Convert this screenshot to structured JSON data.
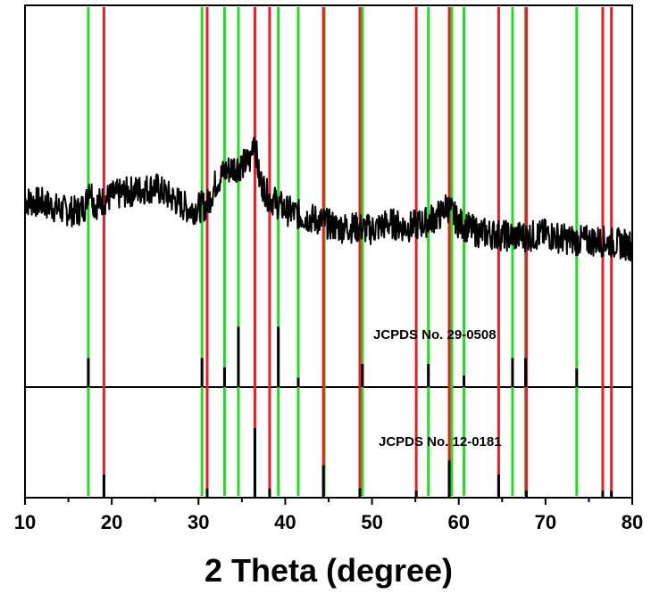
{
  "chart_data": {
    "type": "line",
    "xlabel": "2 Theta (degree)",
    "ylabel": "",
    "xlim": [
      10,
      80
    ],
    "x_ticks": [
      10,
      20,
      30,
      40,
      50,
      60,
      70,
      80
    ],
    "grid": false,
    "legend": "none",
    "series": [
      {
        "color": "#000000",
        "x": [
          10,
          12,
          14,
          16,
          17,
          17.4,
          18,
          20,
          22,
          25,
          27,
          29,
          31,
          32,
          33,
          34,
          35,
          36,
          36.4,
          37,
          38,
          40,
          42,
          44,
          46,
          48,
          50,
          52,
          54,
          56,
          58,
          58.6,
          60,
          62,
          64,
          66,
          68,
          70,
          72,
          74,
          76,
          78,
          80
        ],
        "y": [
          0.62,
          0.61,
          0.58,
          0.57,
          0.6,
          0.7,
          0.6,
          0.64,
          0.66,
          0.68,
          0.63,
          0.58,
          0.6,
          0.7,
          0.75,
          0.77,
          0.78,
          0.8,
          0.92,
          0.72,
          0.64,
          0.58,
          0.55,
          0.53,
          0.5,
          0.5,
          0.49,
          0.52,
          0.5,
          0.52,
          0.56,
          0.6,
          0.52,
          0.48,
          0.47,
          0.46,
          0.46,
          0.47,
          0.45,
          0.44,
          0.44,
          0.43,
          0.42
        ]
      }
    ],
    "references": [
      {
        "label": "JCPDS No. 29-0508",
        "color": "#22dd22",
        "peaks": [
          {
            "x": 17.3,
            "h": 0.25
          },
          {
            "x": 30.4,
            "h": 0.25
          },
          {
            "x": 33.0,
            "h": 0.17
          },
          {
            "x": 34.6,
            "h": 0.52
          },
          {
            "x": 39.2,
            "h": 0.52
          },
          {
            "x": 41.5,
            "h": 0.08
          },
          {
            "x": 44.5,
            "h": 0
          },
          {
            "x": 48.9,
            "h": 0.2
          },
          {
            "x": 56.5,
            "h": 0.2
          },
          {
            "x": 59.2,
            "h": 0
          },
          {
            "x": 60.6,
            "h": 0.1
          },
          {
            "x": 66.2,
            "h": 0.25
          },
          {
            "x": 67.7,
            "h": 0.25
          },
          {
            "x": 73.6,
            "h": 0.16
          }
        ]
      },
      {
        "label": "JCPDS No. 12-0181",
        "color": "#ee1c24",
        "peaks": [
          {
            "x": 19.1,
            "h": 0.2
          },
          {
            "x": 31.0,
            "h": 0.08
          },
          {
            "x": 36.5,
            "h": 0.6
          },
          {
            "x": 38.2,
            "h": 0.08
          },
          {
            "x": 44.4,
            "h": 0.28
          },
          {
            "x": 48.6,
            "h": 0.08
          },
          {
            "x": 55.1,
            "h": 0.06
          },
          {
            "x": 58.9,
            "h": 0.32
          },
          {
            "x": 64.6,
            "h": 0.2
          },
          {
            "x": 67.8,
            "h": 0.06
          },
          {
            "x": 76.6,
            "h": 0.06
          },
          {
            "x": 77.6,
            "h": 0.06
          }
        ]
      }
    ]
  }
}
